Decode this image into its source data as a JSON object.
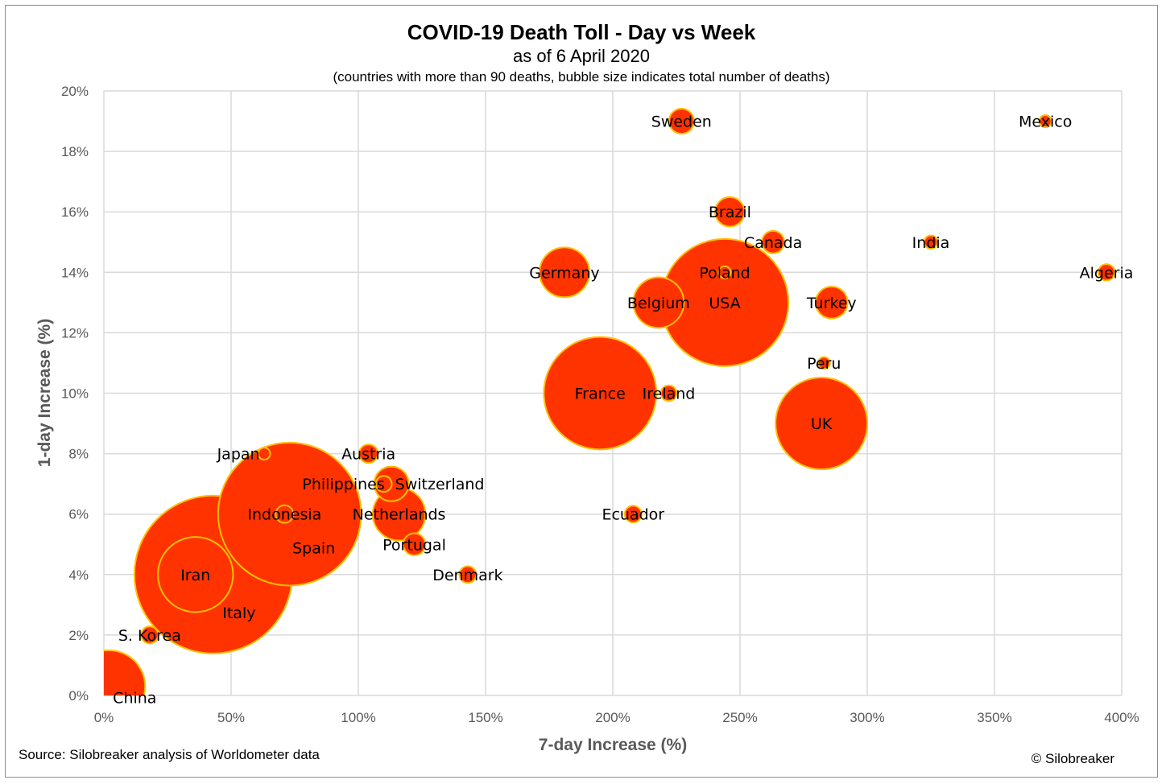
{
  "chart_data": {
    "type": "scatter",
    "title": "COVID-19 Death Toll - Day vs Week",
    "subtitle": "as of 6 April 2020",
    "note": "(countries with more than 90 deaths, bubble size indicates total number of deaths)",
    "xlabel": "7-day Increase (%)",
    "ylabel": "1-day Increase (%)",
    "xlim": [
      0,
      400
    ],
    "ylim": [
      0,
      20
    ],
    "x_ticks": [
      0,
      50,
      100,
      150,
      200,
      250,
      300,
      350,
      400
    ],
    "y_ticks": [
      0,
      2,
      4,
      6,
      8,
      10,
      12,
      14,
      16,
      18,
      20
    ],
    "tick_suffix": "%",
    "grid": true,
    "bubble_fill": "#ff3300",
    "bubble_stroke": "#ffc000",
    "points": [
      {
        "label": "China",
        "x": 2,
        "y": 0.3,
        "deaths": 3331
      },
      {
        "label": "S. Korea",
        "x": 18,
        "y": 2,
        "deaths": 186
      },
      {
        "label": "Iran",
        "x": 36,
        "y": 4,
        "deaths": 3603
      },
      {
        "label": "Italy",
        "x": 43,
        "y": 4,
        "deaths": 15887
      },
      {
        "label": "Spain",
        "x": 73,
        "y": 6,
        "deaths": 13055
      },
      {
        "label": "Japan",
        "x": 63,
        "y": 8,
        "deaths": 92
      },
      {
        "label": "Indonesia",
        "x": 71,
        "y": 6,
        "deaths": 198
      },
      {
        "label": "Austria",
        "x": 104,
        "y": 8,
        "deaths": 220
      },
      {
        "label": "Philippines",
        "x": 110,
        "y": 7,
        "deaths": 163
      },
      {
        "label": "Switzerland",
        "x": 113,
        "y": 7,
        "deaths": 765
      },
      {
        "label": "Netherlands",
        "x": 116,
        "y": 6,
        "deaths": 1766
      },
      {
        "label": "Portugal",
        "x": 122,
        "y": 5,
        "deaths": 311
      },
      {
        "label": "Denmark",
        "x": 143,
        "y": 4,
        "deaths": 179
      },
      {
        "label": "Germany",
        "x": 181,
        "y": 14,
        "deaths": 1584
      },
      {
        "label": "France",
        "x": 195,
        "y": 10,
        "deaths": 8078
      },
      {
        "label": "Ecuador",
        "x": 208,
        "y": 6,
        "deaths": 180
      },
      {
        "label": "Belgium",
        "x": 218,
        "y": 13,
        "deaths": 1632
      },
      {
        "label": "Ireland",
        "x": 222,
        "y": 10,
        "deaths": 158
      },
      {
        "label": "Sweden",
        "x": 227,
        "y": 19,
        "deaths": 401
      },
      {
        "label": "USA",
        "x": 244,
        "y": 13,
        "deaths": 10335
      },
      {
        "label": "Poland",
        "x": 244,
        "y": 14,
        "deaths": 94
      },
      {
        "label": "Brazil",
        "x": 246,
        "y": 16,
        "deaths": 553
      },
      {
        "label": "Canada",
        "x": 263,
        "y": 15,
        "deaths": 323
      },
      {
        "label": "UK",
        "x": 282,
        "y": 9,
        "deaths": 5373
      },
      {
        "label": "Peru",
        "x": 283,
        "y": 11,
        "deaths": 92
      },
      {
        "label": "Turkey",
        "x": 286,
        "y": 13,
        "deaths": 649
      },
      {
        "label": "India",
        "x": 325,
        "y": 15,
        "deaths": 114
      },
      {
        "label": "Mexico",
        "x": 370,
        "y": 19,
        "deaths": 94
      },
      {
        "label": "Algeria",
        "x": 394,
        "y": 14,
        "deaths": 173
      }
    ]
  },
  "footer": {
    "source": "Source: Silobreaker analysis of Worldometer data",
    "copyright": "© Silobreaker"
  }
}
